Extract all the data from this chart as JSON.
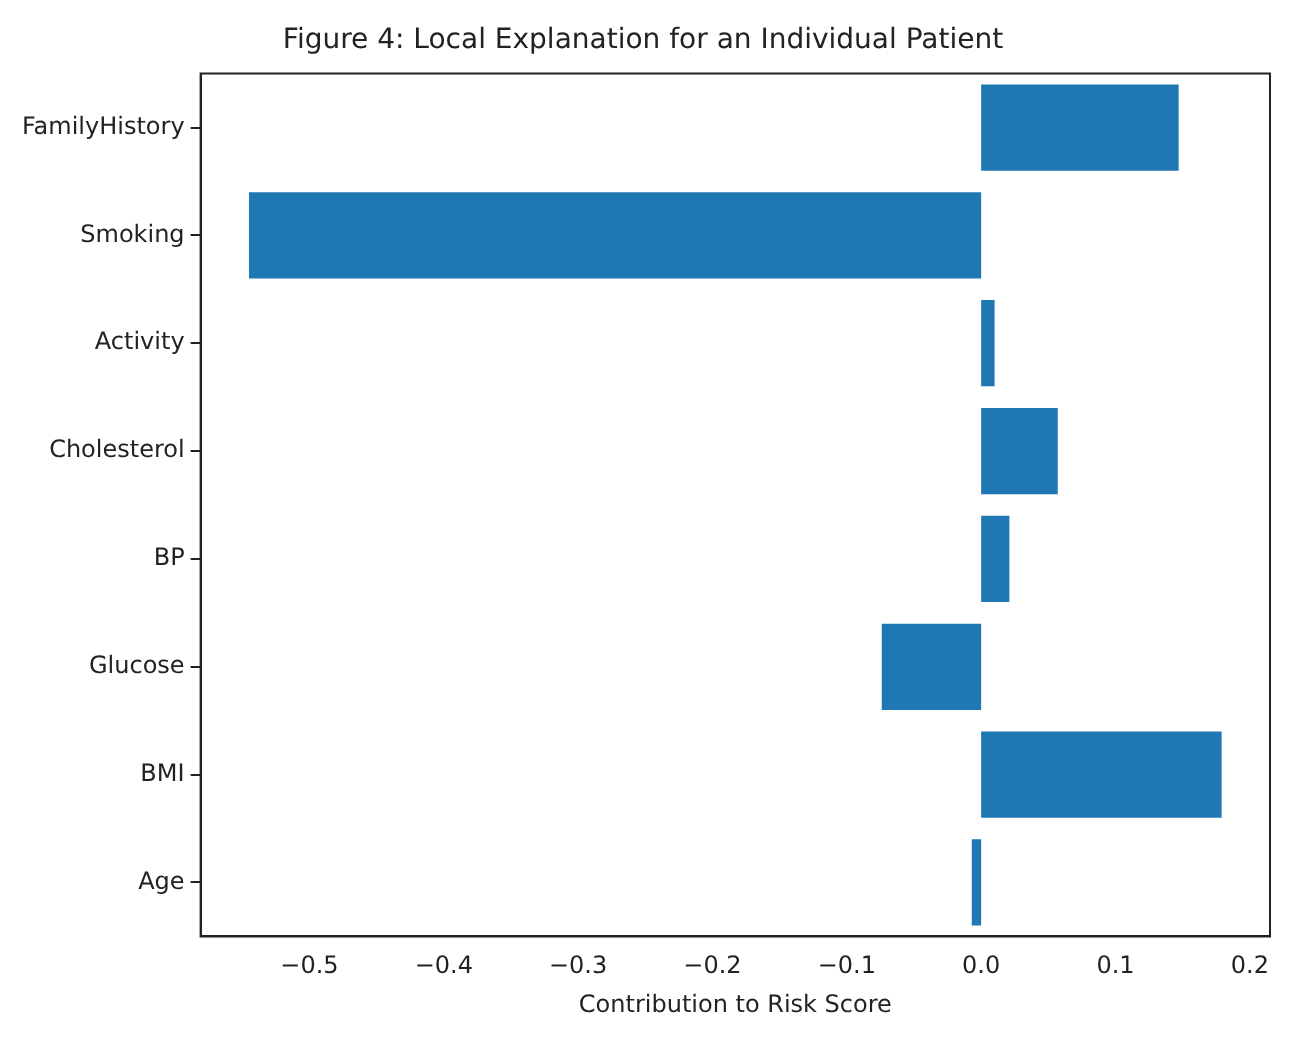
{
  "chart_data": {
    "type": "bar",
    "orientation": "horizontal",
    "title": "Figure 4: Local Explanation for an Individual Patient",
    "xlabel": "Contribution to Risk Score",
    "categories": [
      "FamilyHistory",
      "Smoking",
      "Activity",
      "Cholesterol",
      "BP",
      "Glucose",
      "BMI",
      "Age"
    ],
    "values": [
      0.147,
      -0.545,
      0.01,
      0.057,
      0.021,
      -0.074,
      0.179,
      -0.007
    ],
    "color": "#1f77b4",
    "xlim": [
      -0.581,
      0.215
    ],
    "xticks": [
      {
        "value": -0.5,
        "label": "−0.5"
      },
      {
        "value": -0.4,
        "label": "−0.4"
      },
      {
        "value": -0.3,
        "label": "−0.3"
      },
      {
        "value": -0.2,
        "label": "−0.2"
      },
      {
        "value": -0.1,
        "label": "−0.1"
      },
      {
        "value": 0,
        "label": "0.0"
      },
      {
        "value": 0.1,
        "label": "0.1"
      },
      {
        "value": 0.2,
        "label": "0.2"
      }
    ],
    "grid": false,
    "legend": false
  }
}
